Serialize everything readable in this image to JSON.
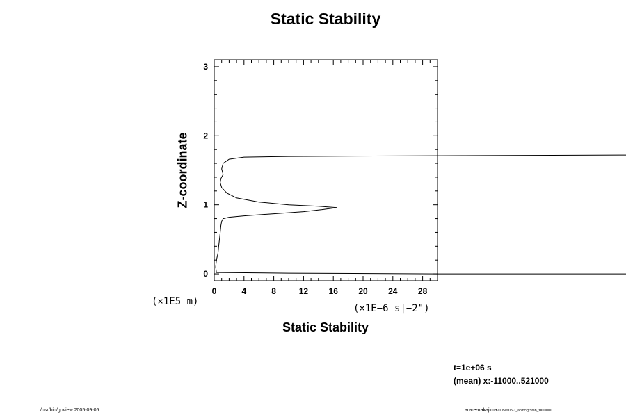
{
  "chart_data": {
    "type": "line",
    "title": "Static Stability",
    "xlabel": "Static Stability",
    "ylabel": "Z-coordinate",
    "x_unit": "(×1E−6 s|−2\")",
    "y_unit": "(×1E5 m)",
    "xlim": [
      0,
      30
    ],
    "ylim": [
      -0.1,
      3.1
    ],
    "x_ticks": [
      "0",
      "4",
      "8",
      "12",
      "16",
      "20",
      "24",
      "28"
    ],
    "y_ticks": [
      "0",
      "1",
      "2",
      "3"
    ],
    "grid": false,
    "series": [
      {
        "points": [
          [
            56,
            0.0
          ],
          [
            30,
            0.0
          ],
          [
            10,
            0.01
          ],
          [
            0.3,
            0.02
          ],
          [
            0.2,
            0.1
          ],
          [
            0.3,
            0.2
          ],
          [
            0.5,
            0.3
          ],
          [
            0.6,
            0.4
          ],
          [
            0.7,
            0.5
          ],
          [
            0.8,
            0.6
          ],
          [
            0.9,
            0.7
          ],
          [
            1.0,
            0.76
          ],
          [
            1.2,
            0.8
          ],
          [
            2,
            0.82
          ],
          [
            4,
            0.84
          ],
          [
            8,
            0.87
          ],
          [
            12,
            0.9
          ],
          [
            14.5,
            0.93
          ],
          [
            16.5,
            0.96
          ],
          [
            14,
            0.98
          ],
          [
            10,
            1.0
          ],
          [
            6,
            1.04
          ],
          [
            3,
            1.1
          ],
          [
            1.7,
            1.17
          ],
          [
            1.0,
            1.25
          ],
          [
            0.8,
            1.32
          ],
          [
            0.9,
            1.38
          ],
          [
            1.2,
            1.44
          ],
          [
            1.0,
            1.52
          ],
          [
            1.2,
            1.6
          ],
          [
            2,
            1.66
          ],
          [
            4,
            1.69
          ],
          [
            10,
            1.7
          ],
          [
            30,
            1.71
          ],
          [
            56,
            1.72
          ]
        ]
      }
    ]
  },
  "annotations": {
    "time": "t=1e+06 s",
    "mean": "(mean) x:-11000..521000",
    "footer_left": "/usr/bin/gpview 2005-09-05",
    "footer_right": "arare-nakajima",
    "footer_right_sub": "20050905-1_anlnc@Stab_z=10000"
  }
}
